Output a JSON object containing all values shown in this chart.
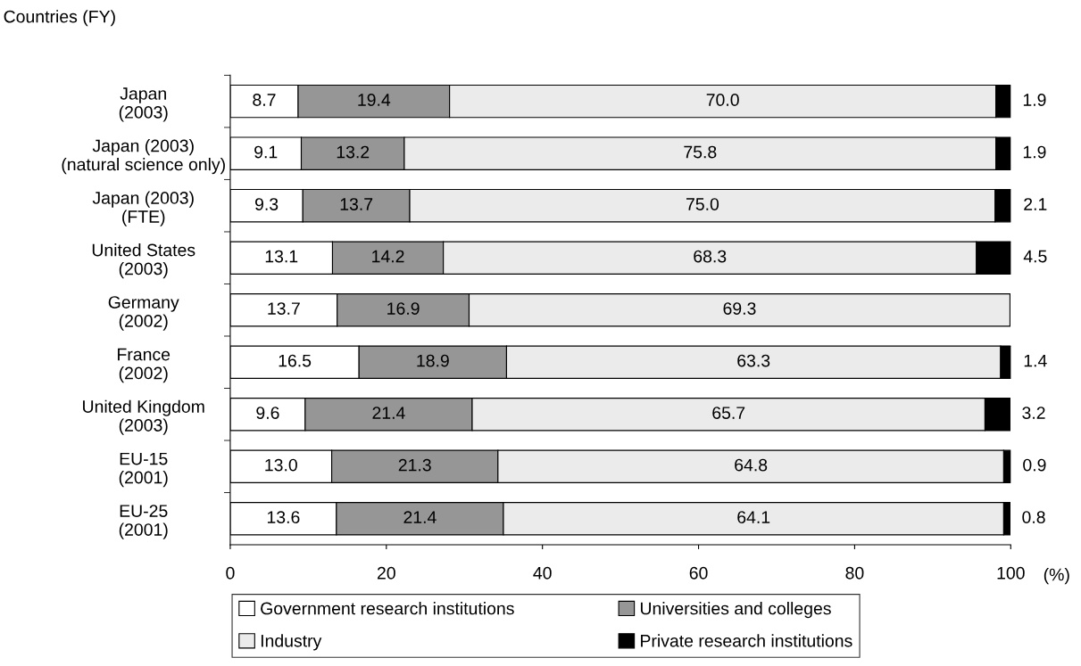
{
  "chart_data": {
    "type": "bar",
    "orientation": "horizontal",
    "stacked": true,
    "ylabel": "Countries (FY)",
    "xlabel": "(%)",
    "categories": [
      "Japan\n(2003)",
      "Japan (2003)\n(natural science only)",
      "Japan (2003)\n(FTE)",
      "United States\n(2003)",
      "Germany\n(2002)",
      "France\n(2002)",
      "United Kingdom\n(2003)",
      "EU-15\n(2001)",
      "EU-25\n(2001)"
    ],
    "series": [
      {
        "name": "Government research institutions",
        "color": "#ffffff",
        "values": [
          8.7,
          9.1,
          9.3,
          13.1,
          13.7,
          16.5,
          9.6,
          13.0,
          13.6
        ],
        "value_labels": [
          "8.7",
          "9.1",
          "9.3",
          "13.1",
          "13.7",
          "16.5",
          "9.6",
          "13.0",
          "13.6"
        ]
      },
      {
        "name": "Universities and colleges",
        "color": "#969696",
        "values": [
          19.4,
          13.2,
          13.7,
          14.2,
          16.9,
          18.9,
          21.4,
          21.3,
          21.4
        ],
        "value_labels": [
          "19.4",
          "13.2",
          "13.7",
          "14.2",
          "16.9",
          "18.9",
          "21.4",
          "21.3",
          "21.4"
        ]
      },
      {
        "name": "Industry",
        "color": "#ebebeb",
        "values": [
          70.0,
          75.8,
          75.0,
          68.3,
          69.3,
          63.3,
          65.7,
          64.8,
          64.1
        ],
        "value_labels": [
          "70.0",
          "75.8",
          "75.0",
          "68.3",
          "69.3",
          "63.3",
          "65.7",
          "64.8",
          "64.1"
        ]
      },
      {
        "name": "Private research institutions",
        "color": "#000000",
        "values": [
          1.9,
          1.9,
          2.1,
          4.5,
          null,
          1.4,
          3.2,
          0.9,
          0.8
        ],
        "value_labels": [
          "1.9",
          "1.9",
          "2.1",
          "4.5",
          null,
          "1.4",
          "3.2",
          "0.9",
          "0.8"
        ]
      }
    ],
    "xlim": [
      0,
      100
    ],
    "xticks": [
      0,
      20,
      40,
      60,
      80,
      100
    ],
    "legend": "bottom",
    "grid": false
  }
}
